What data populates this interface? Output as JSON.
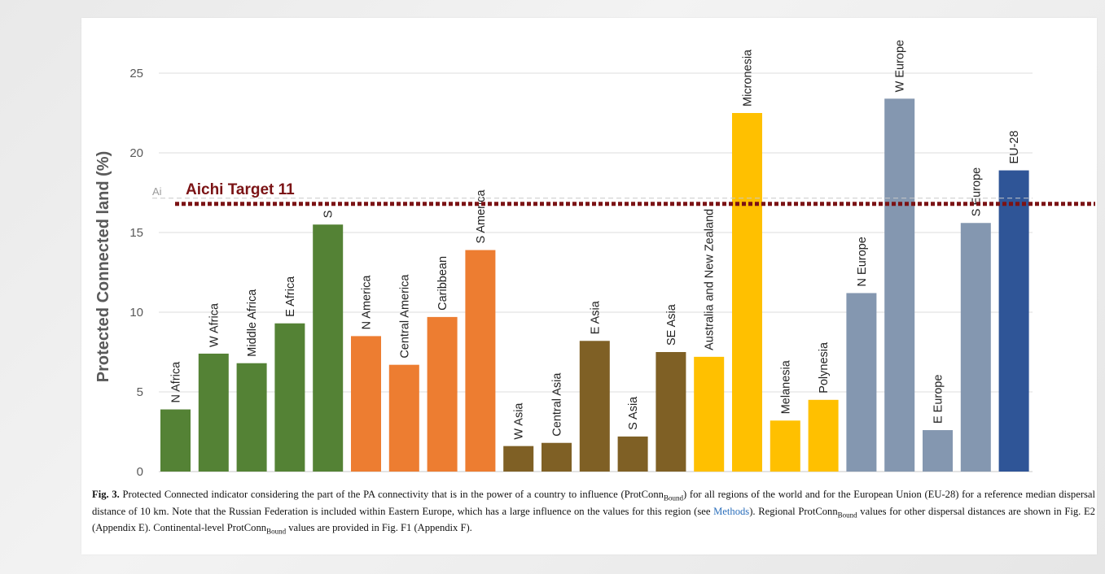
{
  "chart_data": {
    "type": "bar",
    "ylabel": "Protected Connected land (%)",
    "ylim": [
      0,
      27
    ],
    "yticks": [
      0,
      5,
      10,
      15,
      20,
      25
    ],
    "grid": true,
    "categories": [
      "N Africa",
      "W Africa",
      "Middle Africa",
      "E Africa",
      "S",
      "N America",
      "Central America",
      "Caribbean",
      "S America",
      "W Asia",
      "Central Asia",
      "E Asia",
      "S Asia",
      "SE Asia",
      "Australia and New Zealand",
      "Micronesia",
      "Melanesia",
      "Polynesia",
      "N Europe",
      "W Europe",
      "E Europe",
      "S Europe",
      "EU-28"
    ],
    "values": [
      3.9,
      7.4,
      6.8,
      9.3,
      15.5,
      8.5,
      6.7,
      9.7,
      13.9,
      1.6,
      1.8,
      8.2,
      2.2,
      7.5,
      7.2,
      22.5,
      3.2,
      4.5,
      11.2,
      23.4,
      2.6,
      15.6,
      18.9
    ],
    "groups": [
      "africa",
      "africa",
      "africa",
      "africa",
      "africa",
      "americas",
      "americas",
      "americas",
      "americas",
      "asia",
      "asia",
      "asia",
      "asia",
      "asia",
      "oceania",
      "oceania",
      "oceania",
      "oceania",
      "europe",
      "europe",
      "europe",
      "europe",
      "eu"
    ],
    "colors": {
      "africa": "#548235",
      "americas": "#ed7d31",
      "asia": "#7f6025",
      "oceania": "#ffc000",
      "europe": "#8497b0",
      "eu": "#2f5597"
    },
    "target_line": {
      "label": "Aichi Target 11",
      "value": 17,
      "color": "#7b1315",
      "faint_label": "Ai"
    }
  },
  "caption": {
    "fig_label": "Fig. 3.",
    "seg1": " Protected Connected indicator considering the part of the PA connectivity that is in the power of a country to influence (ProtConn",
    "sub1": "Bound",
    "seg2": ") for all regions of the world and for the European Union (EU-28) for a reference median dispersal distance of 10 km. Note that the Russian Federation is included within Eastern Europe, which has a large influence on the values for this region (see ",
    "link": "Methods",
    "seg3": "). Regional ProtConn",
    "sub2": "Bound",
    "seg4": " values for other dispersal distances are shown in Fig. E2 (Appendix E). Continental-level ProtConn",
    "sub3": "Bound",
    "seg5": " values are provided in Fig. F1 (Appendix F)."
  }
}
